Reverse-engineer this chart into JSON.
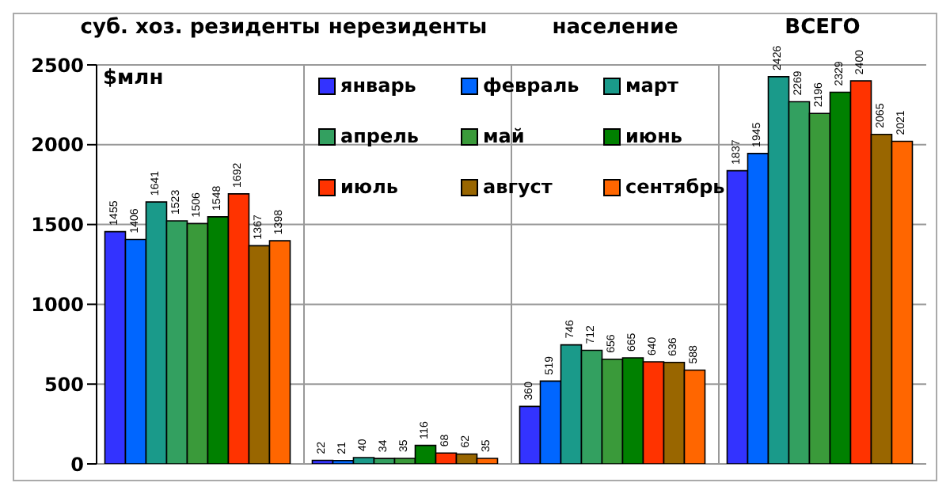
{
  "chart_data": {
    "type": "bar",
    "ylabel": "$млн",
    "categories": [
      "суб. хоз. резиденты",
      "нерезиденты",
      "население",
      "ВСЕГО"
    ],
    "series": [
      {
        "name": "январь",
        "color": "#3333ff",
        "values": [
          1455,
          22,
          360,
          1837
        ]
      },
      {
        "name": "февраль",
        "color": "#0066ff",
        "values": [
          1406,
          21,
          519,
          1945
        ]
      },
      {
        "name": "март",
        "color": "#1a9a8a",
        "values": [
          1641,
          40,
          746,
          2426
        ]
      },
      {
        "name": "апрель",
        "color": "#33a060",
        "values": [
          1523,
          34,
          712,
          2269
        ]
      },
      {
        "name": "май",
        "color": "#3a9a3a",
        "values": [
          1506,
          35,
          656,
          2196
        ]
      },
      {
        "name": "июнь",
        "color": "#008000",
        "values": [
          1548,
          116,
          665,
          2329
        ]
      },
      {
        "name": "июль",
        "color": "#ff3300",
        "values": [
          1692,
          68,
          640,
          2400
        ]
      },
      {
        "name": "август",
        "color": "#996600",
        "values": [
          1367,
          62,
          636,
          2065
        ]
      },
      {
        "name": "сентябрь",
        "color": "#ff6600",
        "values": [
          1398,
          35,
          588,
          2021
        ]
      }
    ],
    "ylim": [
      0,
      2500
    ],
    "yticks": [
      0,
      500,
      1000,
      1500,
      2000,
      2500
    ],
    "grid": true,
    "legend": "top",
    "data_labels": true
  }
}
